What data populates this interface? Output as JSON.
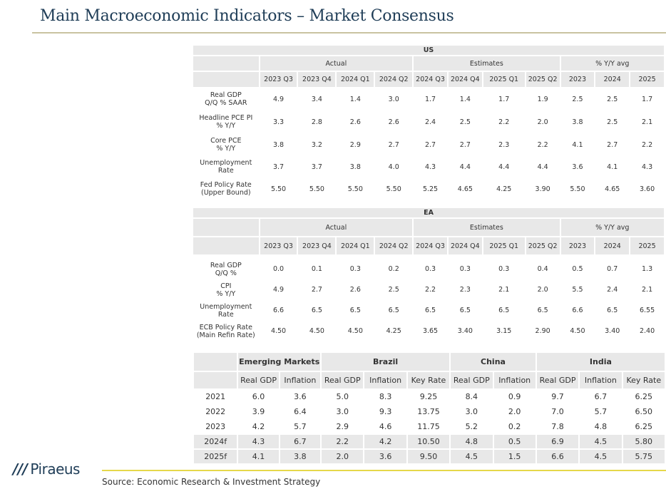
{
  "title": "Main Macroeconomic Indicators – Market Consensus",
  "us": {
    "region": "US",
    "groups": {
      "actual": "Actual",
      "estimates": "Estimates",
      "yoy": "% Y/Y avg"
    },
    "periods": [
      "2023 Q3",
      "2023 Q4",
      "2024 Q1",
      "2024 Q2",
      "2024 Q3",
      "2024 Q4",
      "2025 Q1",
      "2025 Q2",
      "2023",
      "2024",
      "2025"
    ],
    "rows": [
      {
        "label1": "Real GDP",
        "label2": "Q/Q % SAAR",
        "values": [
          "4.9",
          "3.4",
          "1.4",
          "3.0",
          "1.7",
          "1.4",
          "1.7",
          "1.9",
          "2.5",
          "2.5",
          "1.7"
        ]
      },
      {
        "label1": "Headline PCE PI",
        "label2": "% Y/Y",
        "values": [
          "3.3",
          "2.8",
          "2.6",
          "2.6",
          "2.4",
          "2.5",
          "2.2",
          "2.0",
          "3.8",
          "2.5",
          "2.1"
        ]
      },
      {
        "label1": "Core PCE",
        "label2": "% Y/Y",
        "values": [
          "3.8",
          "3.2",
          "2.9",
          "2.7",
          "2.7",
          "2.7",
          "2.3",
          "2.2",
          "4.1",
          "2.7",
          "2.2"
        ]
      },
      {
        "label1": "Unemployment",
        "label2": "Rate",
        "values": [
          "3.7",
          "3.7",
          "3.8",
          "4.0",
          "4.3",
          "4.4",
          "4.4",
          "4.4",
          "3.6",
          "4.1",
          "4.3"
        ]
      },
      {
        "label1": "Fed Policy Rate",
        "label2": "(Upper Bound)",
        "values": [
          "5.50",
          "5.50",
          "5.50",
          "5.50",
          "5.25",
          "4.65",
          "4.25",
          "3.90",
          "5.50",
          "4.65",
          "3.60"
        ]
      }
    ]
  },
  "ea": {
    "region": "EA",
    "groups": {
      "actual": "Actual",
      "estimates": "Estimates",
      "yoy": "% Y/Y avg"
    },
    "periods": [
      "2023 Q3",
      "2023 Q4",
      "2024 Q1",
      "2024 Q2",
      "2024 Q3",
      "2024 Q4",
      "2025 Q1",
      "2025 Q2",
      "2023",
      "2024",
      "2025"
    ],
    "rows": [
      {
        "label1": "Real GDP",
        "label2": "Q/Q %",
        "values": [
          "0.0",
          "0.1",
          "0.3",
          "0.2",
          "0.3",
          "0.3",
          "0.3",
          "0.4",
          "0.5",
          "0.7",
          "1.3"
        ]
      },
      {
        "label1": "CPI",
        "label2": "% Y/Y",
        "values": [
          "4.9",
          "2.7",
          "2.6",
          "2.5",
          "2.2",
          "2.3",
          "2.1",
          "2.0",
          "5.5",
          "2.4",
          "2.1"
        ]
      },
      {
        "label1": "Unemployment",
        "label2": "Rate",
        "values": [
          "6.6",
          "6.5",
          "6.5",
          "6.5",
          "6.5",
          "6.5",
          "6.5",
          "6.5",
          "6.6",
          "6.5",
          "6.55"
        ]
      },
      {
        "label1": "ECB Policy Rate",
        "label2": "(Main Refin Rate)",
        "values": [
          "4.50",
          "4.50",
          "4.50",
          "4.25",
          "3.65",
          "3.40",
          "3.15",
          "2.90",
          "4.50",
          "3.40",
          "2.40"
        ]
      }
    ]
  },
  "em": {
    "groups": [
      "Emerging Markets",
      "Brazil",
      "China",
      "India"
    ],
    "columns": [
      "Real GDP",
      "Inflation",
      "Real GDP",
      "Inflation",
      "Key Rate",
      "Real GDP",
      "Inflation",
      "Real GDP",
      "Inflation",
      "Key Rate"
    ],
    "rows": [
      {
        "year": "2021",
        "values": [
          "6.0",
          "3.6",
          "5.0",
          "8.3",
          "9.25",
          "8.4",
          "0.9",
          "9.7",
          "6.7",
          "6.25"
        ]
      },
      {
        "year": "2022",
        "values": [
          "3.9",
          "6.4",
          "3.0",
          "9.3",
          "13.75",
          "3.0",
          "2.0",
          "7.0",
          "5.7",
          "6.50"
        ]
      },
      {
        "year": "2023",
        "values": [
          "4.2",
          "5.7",
          "2.9",
          "4.6",
          "11.75",
          "5.2",
          "0.2",
          "7.8",
          "4.8",
          "6.25"
        ]
      },
      {
        "year": "2024f",
        "values": [
          "4.3",
          "6.7",
          "2.2",
          "4.2",
          "10.50",
          "4.8",
          "0.5",
          "6.9",
          "4.5",
          "5.80"
        ]
      },
      {
        "year": "2025f",
        "values": [
          "4.1",
          "3.8",
          "2.0",
          "3.6",
          "9.50",
          "4.5",
          "1.5",
          "6.6",
          "4.5",
          "5.75"
        ]
      }
    ]
  },
  "footer": {
    "logo_mark": "///",
    "logo_text": "Piraeus",
    "source": "Source: Economic Research & Investment Strategy"
  },
  "colors": {
    "header_fill": "#e8e8e8",
    "title": "#1f3d57",
    "bottom_rule": "#e6d84a",
    "title_rule": "#c9c3a0"
  }
}
